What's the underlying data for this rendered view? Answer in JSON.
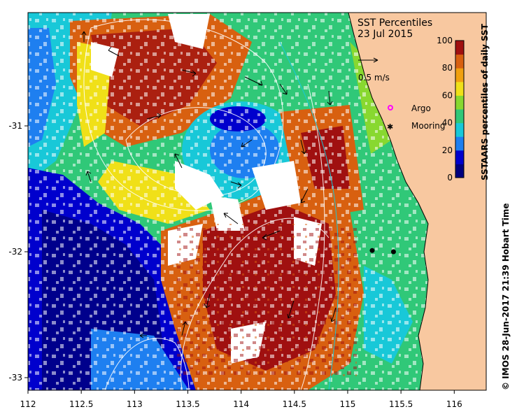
{
  "title": "SST Percentiles",
  "date": "23 Jul 2015",
  "scale_arrow_label": "0.5 m/s",
  "legend": {
    "argo_label": "Argo",
    "mooring_label": "Mooring",
    "argo_color": "#ff00ff",
    "mooring_color": "#000000"
  },
  "colorbar": {
    "title": "SSTAARS percentiles of daily SST",
    "ticks": [
      "0",
      "20",
      "40",
      "60",
      "80",
      "100"
    ],
    "colors": [
      "#000080",
      "#0000cd",
      "#1e7ff0",
      "#18c8d8",
      "#30c878",
      "#88d830",
      "#f0e018",
      "#f0a010",
      "#d86010",
      "#a01010"
    ]
  },
  "credit": "© IMOS 28-Jun-2017 21:39 Hobart Time",
  "land_color": "#f8c8a0",
  "axes": {
    "x_ticks": [
      "112",
      "112.5",
      "113",
      "113.5",
      "114",
      "114.5",
      "115",
      "115.5",
      "116"
    ],
    "y_ticks": [
      "-31",
      "-32",
      "-33"
    ],
    "x_range": [
      112,
      116.3
    ],
    "y_range": [
      -33.1,
      -30.1
    ]
  },
  "moorings": [
    {
      "lon": 115.23,
      "lat": -31.99
    },
    {
      "lon": 115.43,
      "lat": -32.0
    }
  ]
}
